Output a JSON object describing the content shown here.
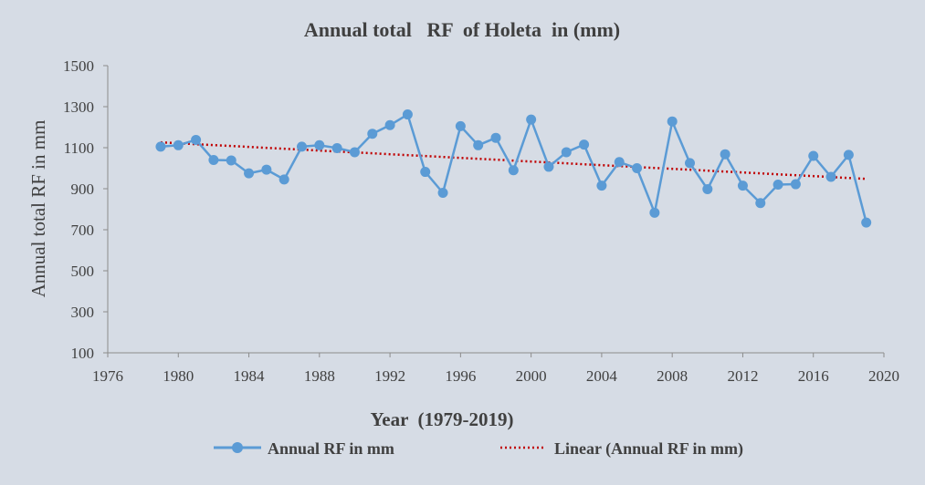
{
  "chart_data": {
    "type": "line",
    "title": "Annual total   RF  of Holeta  in (mm)",
    "xlabel": "Year  (1979-2019)",
    "ylabel": "Annual total RF in mm",
    "xlim": [
      1976,
      2020
    ],
    "ylim": [
      100,
      1500
    ],
    "x_ticks": [
      1976,
      1980,
      1984,
      1988,
      1992,
      1996,
      2000,
      2004,
      2008,
      2012,
      2016,
      2020
    ],
    "y_ticks": [
      100,
      300,
      500,
      700,
      900,
      1100,
      1300,
      1500
    ],
    "grid": false,
    "legend_position": "bottom",
    "series": [
      {
        "name": "Annual RF in mm",
        "color": "#5b9bd5",
        "marker": "circle",
        "x": [
          1979,
          1980,
          1981,
          1982,
          1983,
          1984,
          1985,
          1986,
          1987,
          1988,
          1989,
          1990,
          1991,
          1992,
          1993,
          1994,
          1995,
          1996,
          1997,
          1998,
          1999,
          2000,
          2001,
          2002,
          2003,
          2004,
          2005,
          2006,
          2007,
          2008,
          2009,
          2010,
          2011,
          2012,
          2013,
          2014,
          2015,
          2016,
          2017,
          2018,
          2019
        ],
        "values": [
          1105,
          1112,
          1138,
          1040,
          1038,
          975,
          993,
          945,
          1105,
          1112,
          1098,
          1078,
          1168,
          1210,
          1262,
          982,
          880,
          1205,
          1112,
          1148,
          990,
          1237,
          1007,
          1078,
          1115,
          915,
          1030,
          1000,
          783,
          1228,
          1025,
          898,
          1068,
          915,
          830,
          920,
          922,
          1060,
          958,
          1065,
          735
        ]
      },
      {
        "name": "Linear (Annual RF in mm)",
        "color": "#c00000",
        "style": "dotted",
        "type": "trendline",
        "x": [
          1979,
          2019
        ],
        "values": [
          1126,
          948
        ]
      }
    ]
  }
}
